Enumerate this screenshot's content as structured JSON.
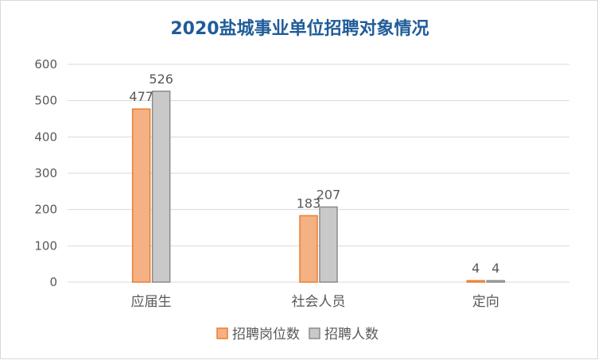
{
  "chart_data": {
    "type": "bar",
    "title": "2020盐城事业单位招聘对象情况",
    "categories": [
      "应届生",
      "社会人员",
      "定向"
    ],
    "series": [
      {
        "name": "招聘岗位数",
        "values": [
          477,
          183,
          4
        ]
      },
      {
        "name": "招聘人数",
        "values": [
          526,
          207,
          4
        ]
      }
    ],
    "ylim": [
      0,
      600
    ],
    "yticks": [
      "0",
      "100",
      "200",
      "300",
      "400",
      "500",
      "600"
    ],
    "grid": true,
    "legend_position": "bottom",
    "colors": {
      "title": "#1F5C99",
      "series": [
        "#F4B183",
        "#C9C9C9"
      ],
      "series_stroke": [
        "#ED7D31",
        "#8C8C8C"
      ],
      "grid": "#d9d9d9"
    }
  }
}
